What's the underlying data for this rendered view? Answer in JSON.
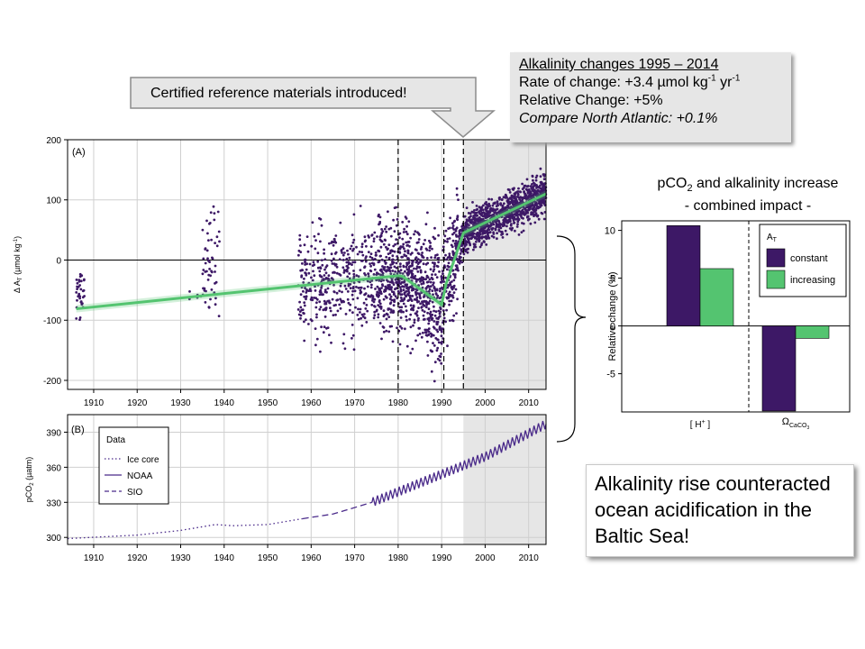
{
  "arrow_label": "Certified reference materials introduced!",
  "callout": {
    "heading": "Alkalinity changes 1995 – 2014",
    "rate_prefix": "Rate of change: +3.4 µmol kg",
    "rate_exp1": "-1",
    "rate_mid": " yr",
    "rate_exp2": "-1",
    "relative": "Relative Change: +5%",
    "compare": "Compare North Atlantic: +0.1%"
  },
  "bar_title": {
    "line1_prefix": "pCO",
    "line1_sub": "2",
    "line1_suffix": " and alkalinity increase",
    "line2": "- combined impact -"
  },
  "conclusion": "Alkalinity rise counteracted ocean acidification in the Baltic Sea!",
  "chart_data": [
    {
      "type": "scatter",
      "panel_label": "(A)",
      "ylabel": "Δ A",
      "ylabel_sub": "T",
      "ylabel_unit": " (µmol kg",
      "ylabel_exp": "-1",
      "ylabel_end": ")",
      "xlim": [
        1904,
        2014
      ],
      "ylim": [
        -215,
        200
      ],
      "x_ticks": [
        1910,
        1920,
        1930,
        1940,
        1950,
        1960,
        1970,
        1980,
        1990,
        2000,
        2010
      ],
      "y_ticks": [
        -200,
        -100,
        0,
        100,
        200
      ],
      "shaded_region": [
        1995,
        2014
      ],
      "vertical_lines": [
        1980,
        1990.5,
        1995
      ],
      "trend_line": {
        "x": [
          1906,
          1980,
          1981,
          1990,
          1991,
          1995,
          2014
        ],
        "y": [
          -81,
          -26,
          -27,
          -74,
          -40,
          45,
          110
        ]
      },
      "scatter_clusters": [
        {
          "x": [
            1906,
            1908
          ],
          "y": [
            -140,
            22
          ]
        },
        {
          "x": [
            1930,
            1935
          ],
          "y": [
            -80,
            25
          ]
        },
        {
          "x": [
            1935,
            1939
          ],
          "y": [
            -150,
            145
          ]
        },
        {
          "x": [
            1957,
            1975
          ],
          "y": [
            -200,
            200
          ]
        },
        {
          "x": [
            1975,
            1994
          ],
          "y": [
            -210,
            200
          ]
        },
        {
          "x": [
            1994,
            2014
          ],
          "y": [
            -100,
            200
          ]
        }
      ]
    },
    {
      "type": "line",
      "panel_label": "(B)",
      "ylabel": "pCO",
      "ylabel_sub": "2",
      "ylabel_unit": " (µatm)",
      "xlim": [
        1904,
        2014
      ],
      "ylim": [
        294,
        405
      ],
      "x_ticks": [
        1910,
        1920,
        1930,
        1940,
        1950,
        1960,
        1970,
        1980,
        1990,
        2000,
        2010
      ],
      "y_ticks": [
        300,
        330,
        360,
        390
      ],
      "shaded_region": [
        1995,
        2014
      ],
      "legend": {
        "title": "Data",
        "placement": "top-left"
      },
      "series": [
        {
          "name": "Ice core",
          "style": "dotted",
          "x": [
            1904,
            1920,
            1930,
            1938,
            1942,
            1950,
            1958
          ],
          "y": [
            299,
            302,
            306,
            311,
            310,
            311,
            316
          ]
        },
        {
          "name": "NOAA",
          "style": "solid",
          "x": [
            1974,
            1990,
            2000,
            2014
          ],
          "y": [
            330,
            354,
            369,
            397
          ],
          "seasonal_amplitude": 4
        },
        {
          "name": "SIO",
          "style": "dashed",
          "x": [
            1958,
            1965,
            1974
          ],
          "y": [
            316,
            320,
            330
          ]
        }
      ]
    },
    {
      "type": "bar",
      "ylabel": "Relative change (%)",
      "ylim": [
        -9,
        11
      ],
      "y_ticks": [
        -5,
        0,
        5,
        10
      ],
      "categories": [
        "[ H+ ]",
        "ΩCaCO3"
      ],
      "category_labels": {
        "h_text": "[ H",
        "h_sup": "+",
        "h_end": " ]",
        "omega": "Ω",
        "omega_sub": "CaCO",
        "omega_subsub": "3"
      },
      "legend": {
        "title": "A",
        "title_sub": "T",
        "placement": "top-right"
      },
      "series": [
        {
          "name": "constant",
          "color": "#3d1866",
          "values": [
            10.5,
            -8.9
          ]
        },
        {
          "name": "increasing",
          "color": "#54c470",
          "values": [
            6,
            -1.3
          ]
        }
      ]
    }
  ],
  "colors": {
    "points": "#3d1866",
    "trend": "#54c470",
    "shade": "#e6e6e6",
    "co2": "#4a2a8a"
  }
}
